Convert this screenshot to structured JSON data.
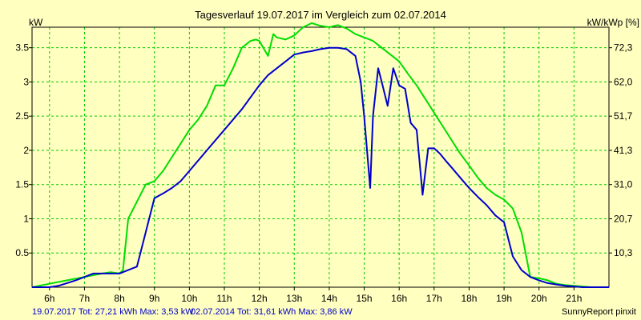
{
  "chart_data": {
    "type": "line",
    "title": "Tagesverlauf 19.07.2017 im Vergleich zum 02.07.2014",
    "ylabel_left": "kW",
    "ylabel_right": "kW/kWp [%]",
    "xlim": [
      5.5,
      22.0
    ],
    "ylim": [
      0,
      3.8
    ],
    "x_ticks": [
      6,
      7,
      8,
      9,
      10,
      11,
      12,
      13,
      14,
      15,
      16,
      17,
      18,
      19,
      20,
      21
    ],
    "x_tick_labels": [
      "6h",
      "7h",
      "8h",
      "9h",
      "10h",
      "11h",
      "12h",
      "13h",
      "14h",
      "15h",
      "16h",
      "17h",
      "18h",
      "19h",
      "20h",
      "21h"
    ],
    "y_ticks": [
      0.5,
      1,
      1.5,
      2,
      2.5,
      3,
      3.5
    ],
    "y_tick_labels": [
      "0.5",
      "1",
      "1.5",
      "2",
      "2.5",
      "3",
      "3.5"
    ],
    "y_right_ticks": [
      0.5,
      1,
      1.5,
      2,
      2.5,
      3,
      3.5
    ],
    "y_right_tick_labels": [
      "10,3",
      "20,7",
      "31,0",
      "41,3",
      "51,7",
      "62,0",
      "72,3"
    ],
    "grid": true,
    "grid_color": "#00CC00",
    "background_color": "#FFFFC0",
    "series": [
      {
        "name": "19.07.2017",
        "color": "#0000CC",
        "x": [
          5.5,
          6.0,
          6.25,
          6.5,
          6.75,
          7.0,
          7.25,
          7.5,
          7.75,
          8.0,
          8.25,
          8.5,
          8.75,
          9.0,
          9.25,
          9.5,
          9.75,
          10.0,
          10.5,
          11.0,
          11.5,
          12.0,
          12.25,
          12.5,
          12.75,
          13.0,
          13.25,
          13.5,
          13.75,
          14.0,
          14.25,
          14.5,
          14.75,
          14.9,
          15.0,
          15.17,
          15.25,
          15.4,
          15.5,
          15.67,
          15.83,
          16.0,
          16.17,
          16.33,
          16.5,
          16.67,
          16.83,
          17.0,
          17.17,
          17.33,
          17.5,
          17.75,
          18.0,
          18.25,
          18.5,
          18.75,
          19.0,
          19.25,
          19.5,
          19.75,
          20.0,
          20.25,
          20.5,
          20.75,
          21.0,
          21.25,
          21.5,
          22.0
        ],
        "y": [
          0.0,
          0.0,
          0.02,
          0.06,
          0.1,
          0.15,
          0.2,
          0.2,
          0.2,
          0.2,
          0.25,
          0.3,
          0.8,
          1.3,
          1.37,
          1.45,
          1.55,
          1.7,
          2.0,
          2.3,
          2.6,
          2.95,
          3.1,
          3.2,
          3.3,
          3.4,
          3.43,
          3.45,
          3.48,
          3.5,
          3.5,
          3.48,
          3.38,
          3.0,
          2.5,
          1.45,
          2.5,
          3.2,
          3.0,
          2.65,
          3.2,
          2.95,
          2.9,
          2.4,
          2.3,
          1.35,
          2.03,
          2.03,
          1.95,
          1.85,
          1.75,
          1.6,
          1.45,
          1.32,
          1.2,
          1.05,
          0.95,
          0.45,
          0.25,
          0.15,
          0.1,
          0.06,
          0.04,
          0.02,
          0.01,
          0.0,
          0.0,
          0.0
        ]
      },
      {
        "name": "02.07.2014",
        "color": "#00DD00",
        "x": [
          5.5,
          6.0,
          6.5,
          7.0,
          7.5,
          7.75,
          8.0,
          8.1,
          8.25,
          8.5,
          8.75,
          9.0,
          9.25,
          9.5,
          9.75,
          10.0,
          10.25,
          10.5,
          10.75,
          11.0,
          11.25,
          11.5,
          11.75,
          11.9,
          12.0,
          12.25,
          12.4,
          12.5,
          12.75,
          13.0,
          13.25,
          13.5,
          13.75,
          14.0,
          14.25,
          14.5,
          14.75,
          15.0,
          15.25,
          15.5,
          15.75,
          16.0,
          16.25,
          16.5,
          16.75,
          17.0,
          17.25,
          17.5,
          17.75,
          18.0,
          18.25,
          18.5,
          18.75,
          19.0,
          19.25,
          19.5,
          19.75,
          20.0,
          20.25,
          20.5,
          20.75,
          21.0,
          21.25,
          21.5,
          22.0
        ],
        "y": [
          0.0,
          0.05,
          0.1,
          0.15,
          0.2,
          0.22,
          0.2,
          0.25,
          1.0,
          1.25,
          1.5,
          1.55,
          1.7,
          1.9,
          2.1,
          2.3,
          2.45,
          2.65,
          2.95,
          2.95,
          3.2,
          3.5,
          3.6,
          3.62,
          3.6,
          3.38,
          3.7,
          3.65,
          3.62,
          3.68,
          3.8,
          3.86,
          3.82,
          3.8,
          3.83,
          3.78,
          3.7,
          3.65,
          3.6,
          3.5,
          3.4,
          3.3,
          3.12,
          2.95,
          2.75,
          2.55,
          2.35,
          2.15,
          1.95,
          1.78,
          1.6,
          1.45,
          1.35,
          1.28,
          1.15,
          0.8,
          0.15,
          0.13,
          0.1,
          0.05,
          0.03,
          0.02,
          0.01,
          0.0,
          0.0
        ]
      }
    ]
  },
  "footer": {
    "series1_info": "19.07.2017 Tot: 27,21 kWh Max: 3,53 kW",
    "series2_info": "02.07.2014 Tot: 31,61 kWh Max: 3,86 kW",
    "credit": "SunnyReport pinxit",
    "series1_color": "#0000CC",
    "series2_color": "#0000CC"
  }
}
